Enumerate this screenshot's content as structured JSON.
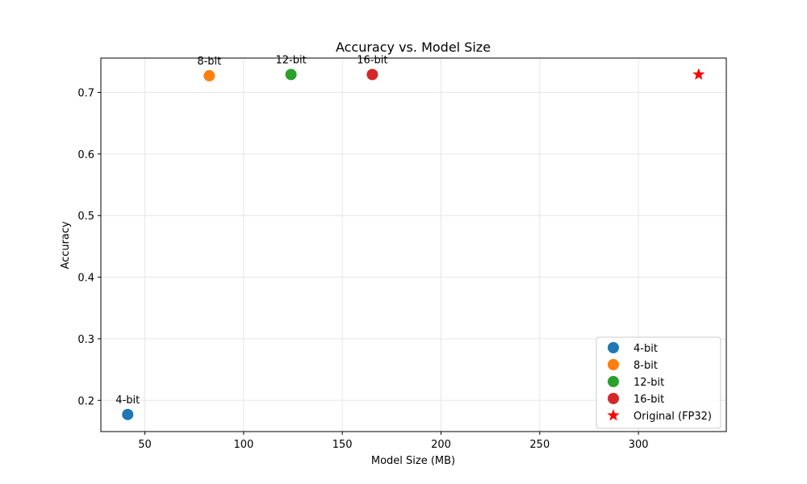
{
  "chart_data": {
    "type": "scatter",
    "title": "Accuracy vs. Model Size",
    "xlabel": "Model Size (MB)",
    "ylabel": "Accuracy",
    "xlim": [
      27.7,
      344.5
    ],
    "ylim": [
      0.1493,
      0.7557
    ],
    "xticks": [
      50,
      100,
      150,
      200,
      250,
      300
    ],
    "yticks": [
      0.2,
      0.3,
      0.4,
      0.5,
      0.6,
      0.7
    ],
    "grid": true,
    "legend_position": "lower-right",
    "series": [
      {
        "name": "4-bit",
        "marker": "circle",
        "color": "#1f77b4",
        "points": [
          {
            "x": 41.3,
            "y": 0.177,
            "label": "4-bit"
          }
        ]
      },
      {
        "name": "8-bit",
        "marker": "circle",
        "color": "#ff7f0e",
        "points": [
          {
            "x": 82.6,
            "y": 0.727,
            "label": "8-bit"
          }
        ]
      },
      {
        "name": "12-bit",
        "marker": "circle",
        "color": "#2ca02c",
        "points": [
          {
            "x": 124.0,
            "y": 0.729,
            "label": "12-bit"
          }
        ]
      },
      {
        "name": "16-bit",
        "marker": "circle",
        "color": "#d62728",
        "points": [
          {
            "x": 165.2,
            "y": 0.729,
            "label": "16-bit"
          }
        ]
      },
      {
        "name": "Original (FP32)",
        "marker": "star",
        "color": "#ff0000",
        "points": [
          {
            "x": 330.5,
            "y": 0.729,
            "label": ""
          }
        ]
      }
    ]
  }
}
